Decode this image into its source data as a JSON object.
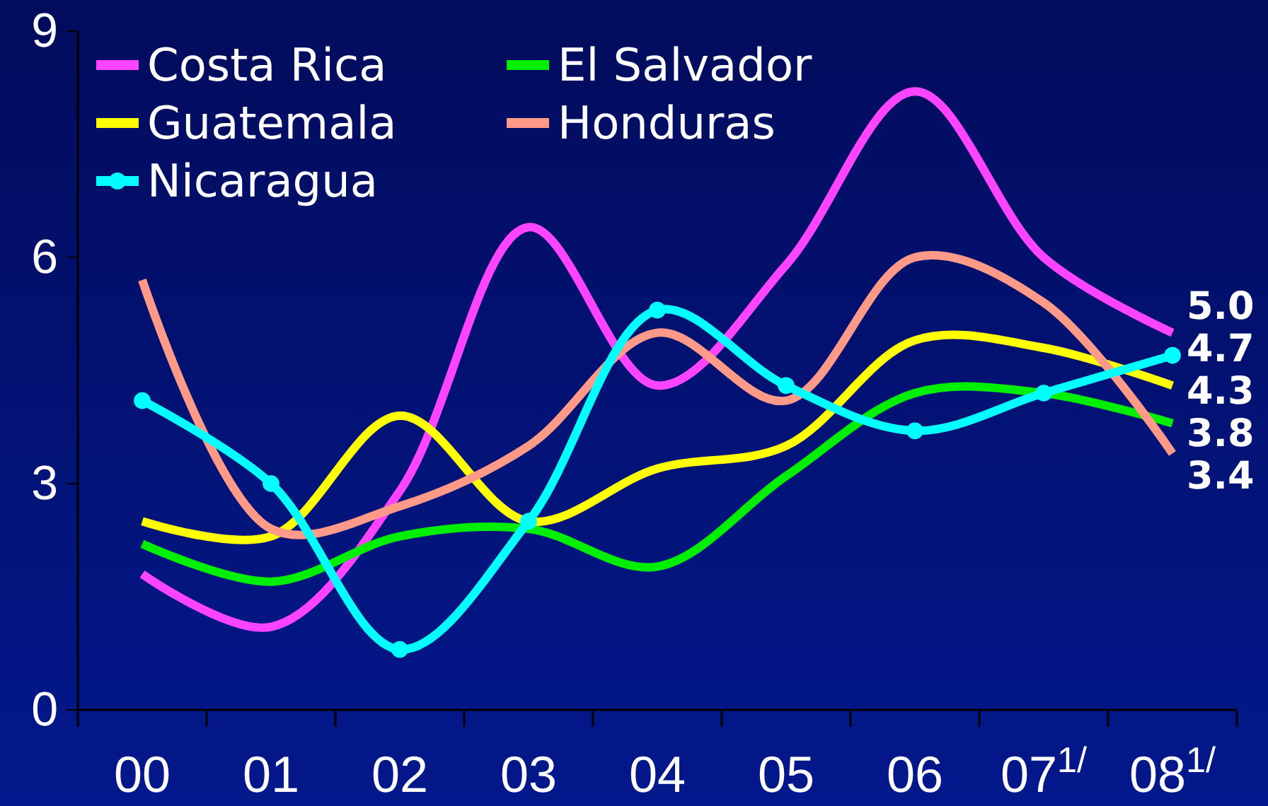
{
  "chart_data": {
    "type": "line",
    "categories": [
      "00",
      "01",
      "02",
      "03",
      "04",
      "05",
      "06",
      "07$^{1/}$",
      "08$^{1/}$"
    ],
    "ylim": [
      0,
      9
    ],
    "yticks": [
      0,
      3,
      6,
      9
    ],
    "grid": false,
    "legend": "top left",
    "marker": "none",
    "series": [
      {
        "name": "Costa Rica",
        "color": "#ff44ff",
        "values": [
          1.8,
          1.1,
          2.9,
          6.4,
          4.3,
          5.9,
          8.2,
          6.0,
          5.0
        ],
        "value_labels": [
          null,
          null,
          null,
          null,
          null,
          null,
          null,
          null,
          "5.0"
        ]
      },
      {
        "name": "El Salvador",
        "color": "#00ee00",
        "values": [
          2.2,
          1.7,
          2.3,
          2.4,
          1.9,
          3.1,
          4.2,
          4.2,
          3.8
        ],
        "value_labels": [
          null,
          null,
          null,
          null,
          null,
          null,
          null,
          null,
          "3.8"
        ]
      },
      {
        "name": "Guatemala",
        "color": "#ffff00",
        "values": [
          2.5,
          2.3,
          3.9,
          2.5,
          3.2,
          3.5,
          4.9,
          4.8,
          4.3
        ],
        "value_labels": [
          null,
          null,
          null,
          null,
          null,
          null,
          null,
          null,
          "4.3"
        ]
      },
      {
        "name": "Honduras",
        "color": "#ff9988",
        "values": [
          5.7,
          2.4,
          2.7,
          3.5,
          5.0,
          4.1,
          6.0,
          5.4,
          3.4
        ],
        "value_labels": [
          null,
          null,
          null,
          null,
          null,
          null,
          null,
          null,
          "3.4"
        ]
      },
      {
        "name": "Nicaragua",
        "color": "#00ffff",
        "marker": "circle",
        "values": [
          4.1,
          3.0,
          0.8,
          2.5,
          5.3,
          4.3,
          3.7,
          4.2,
          4.7
        ],
        "value_labels": [
          null,
          null,
          null,
          null,
          null,
          null,
          null,
          null,
          "4.7"
        ]
      }
    ]
  }
}
